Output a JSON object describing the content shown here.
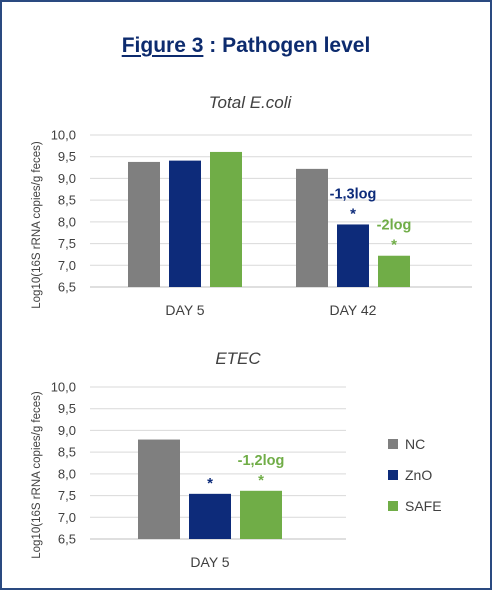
{
  "figure": {
    "number": "Figure 3",
    "separator": " : ",
    "title": "Pathogen level"
  },
  "colors": {
    "NC": "#7f7f7f",
    "ZnO": "#0d2b7a",
    "SAFE": "#70ad47",
    "grid": "#d9d9d9",
    "axis": "#bfbfbf",
    "frame": "#2a4a80"
  },
  "legend": [
    "NC",
    "ZnO",
    "SAFE"
  ],
  "chart_data": [
    {
      "type": "bar",
      "title": "Total E.coli",
      "ylabel": "Log10(16S rRNA copies/g feces)",
      "xlabel": "",
      "ylim": [
        6.5,
        10.0
      ],
      "yticks": [
        "6,5",
        "7,0",
        "7,5",
        "8,0",
        "8,5",
        "9,0",
        "9,5",
        "10,0"
      ],
      "grid": true,
      "categories": [
        "DAY 5",
        "DAY 42"
      ],
      "series": [
        {
          "name": "NC",
          "values": [
            9.38,
            9.22
          ]
        },
        {
          "name": "ZnO",
          "values": [
            9.41,
            7.94
          ]
        },
        {
          "name": "SAFE",
          "values": [
            9.61,
            7.22
          ]
        }
      ],
      "annotations": [
        {
          "category": 1,
          "series": 1,
          "label": "-1,3log",
          "marker": "*"
        },
        {
          "category": 1,
          "series": 2,
          "label": "-2log",
          "marker": "*"
        }
      ]
    },
    {
      "type": "bar",
      "title": "ETEC",
      "ylabel": "Log10(16S rRNA copies/g feces)",
      "xlabel": "",
      "ylim": [
        6.5,
        10.0
      ],
      "yticks": [
        "6,5",
        "7,0",
        "7,5",
        "8,0",
        "8,5",
        "9,0",
        "9,5",
        "10,0"
      ],
      "grid": true,
      "categories": [
        "DAY 5"
      ],
      "series": [
        {
          "name": "NC",
          "values": [
            8.79
          ]
        },
        {
          "name": "ZnO",
          "values": [
            7.54
          ]
        },
        {
          "name": "SAFE",
          "values": [
            7.61
          ]
        }
      ],
      "annotations": [
        {
          "category": 0,
          "series": 1,
          "label": "",
          "marker": "*"
        },
        {
          "category": 0,
          "series": 2,
          "label": "-1,2log",
          "marker": "*"
        }
      ]
    }
  ]
}
